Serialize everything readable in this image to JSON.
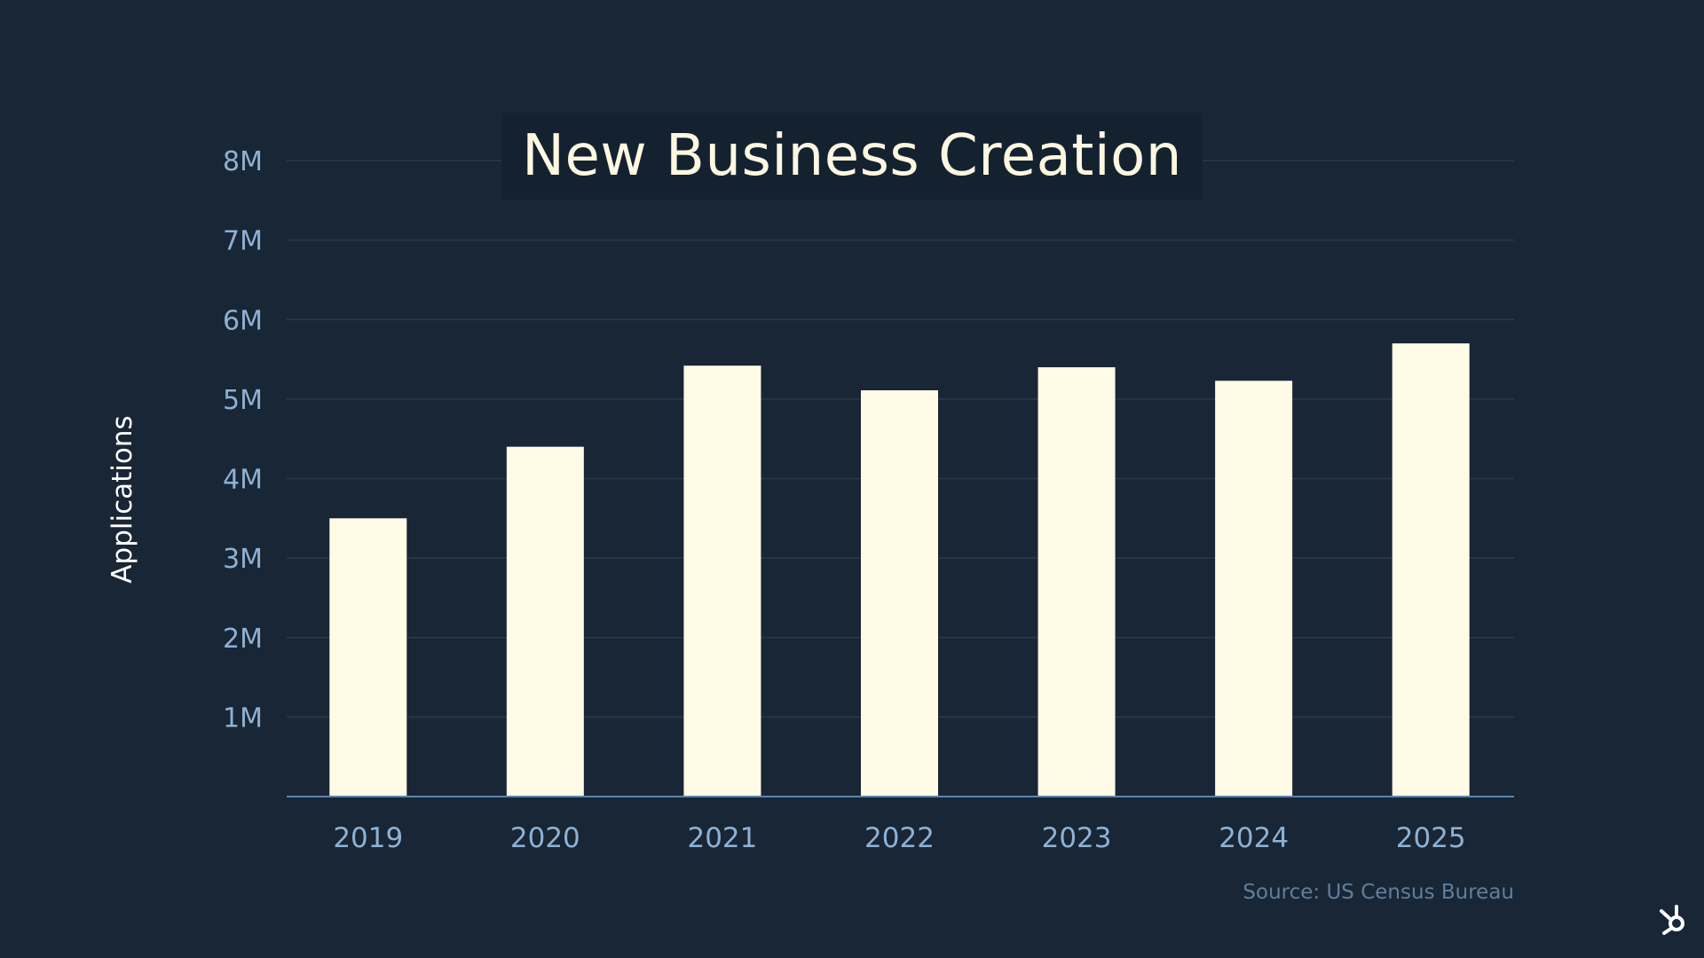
{
  "chart_data": {
    "type": "bar",
    "title": "New Business Creation",
    "ylabel": "Applications",
    "xlabel": "",
    "categories": [
      "2019",
      "2020",
      "2021",
      "2022",
      "2023",
      "2024",
      "2025"
    ],
    "values": [
      3500000,
      4400000,
      5420000,
      5110000,
      5400000,
      5230000,
      5700000
    ],
    "yticks": [
      {
        "value": 1000000,
        "label": "1M"
      },
      {
        "value": 2000000,
        "label": "2M"
      },
      {
        "value": 3000000,
        "label": "3M"
      },
      {
        "value": 4000000,
        "label": "4M"
      },
      {
        "value": 5000000,
        "label": "5M"
      },
      {
        "value": 6000000,
        "label": "6M"
      },
      {
        "value": 7000000,
        "label": "7M"
      },
      {
        "value": 8000000,
        "label": "8M"
      }
    ],
    "ylim": [
      0,
      8000000
    ],
    "grid": true,
    "source": "Source: US Census Bureau"
  },
  "colors": {
    "background": "#182636",
    "bar": "#fffbe6",
    "grid": "#2b3a4b",
    "axis": "#5c86ad",
    "tick_label": "#8eb1d3",
    "title": "#fff8e1",
    "source": "#5f7f9c"
  },
  "logo": {
    "icon": "sprocket-logo-icon"
  }
}
